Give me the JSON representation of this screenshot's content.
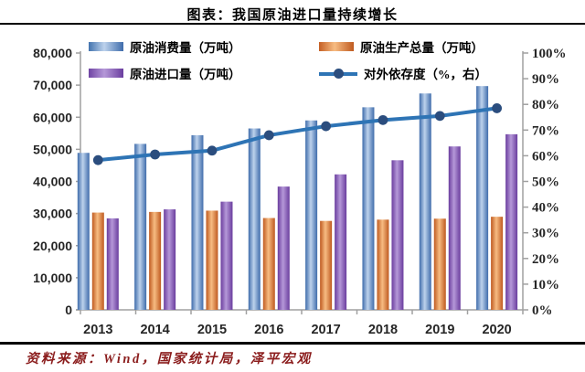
{
  "title": "图表：我国原油进口量持续增长",
  "source": "资料来源：Wind，国家统计局，泽平宏观",
  "colors": {
    "bar_blue_edge": "#3f6cab",
    "bar_blue_mid": "#bdd2ec",
    "bar_orange_edge": "#bf5a20",
    "bar_orange_mid": "#f7bc82",
    "bar_purple_edge": "#6a3d9e",
    "bar_purple_mid": "#b598d8",
    "line": "#2e74b5",
    "marker": "#2b4d7e",
    "axis": "#a0a0a0",
    "tick_text": "#262626",
    "source_text": "#8b1d1d"
  },
  "chart_data": {
    "type": "bar",
    "subtype": "grouped-bars-with-line",
    "title": "图表：我国原油进口量持续增长",
    "categories": [
      "2013",
      "2014",
      "2015",
      "2016",
      "2017",
      "2018",
      "2019",
      "2020"
    ],
    "series": [
      {
        "name": "原油消费量（万吨）",
        "type": "bar",
        "axis": "left",
        "values": [
          48900,
          51700,
          54400,
          56500,
          59000,
          63100,
          67400,
          69700
        ]
      },
      {
        "name": "原油生产总量（万吨）",
        "type": "bar",
        "axis": "left",
        "values": [
          30300,
          30500,
          30900,
          28600,
          27700,
          28100,
          28400,
          29000
        ]
      },
      {
        "name": "原油进口量（万吨）",
        "type": "bar",
        "axis": "left",
        "values": [
          28500,
          31300,
          33700,
          38400,
          42200,
          46600,
          50900,
          54700
        ]
      },
      {
        "name": "对外依存度（%，右）",
        "type": "line",
        "axis": "right",
        "values": [
          58.3,
          60.5,
          62.0,
          68.0,
          71.5,
          73.9,
          75.5,
          78.5
        ]
      }
    ],
    "left_axis": {
      "min": 0,
      "max": 80000,
      "step": 10000,
      "tick_labels": [
        "0",
        "10,000",
        "20,000",
        "30,000",
        "40,000",
        "50,000",
        "60,000",
        "70,000",
        "80,000"
      ]
    },
    "right_axis": {
      "min": 0,
      "max": 100,
      "step": 10,
      "tick_labels": [
        "0%",
        "10%",
        "20%",
        "30%",
        "40%",
        "50%",
        "60%",
        "70%",
        "80%",
        "90%",
        "100%"
      ]
    },
    "grid": false,
    "legend_position": "top"
  }
}
